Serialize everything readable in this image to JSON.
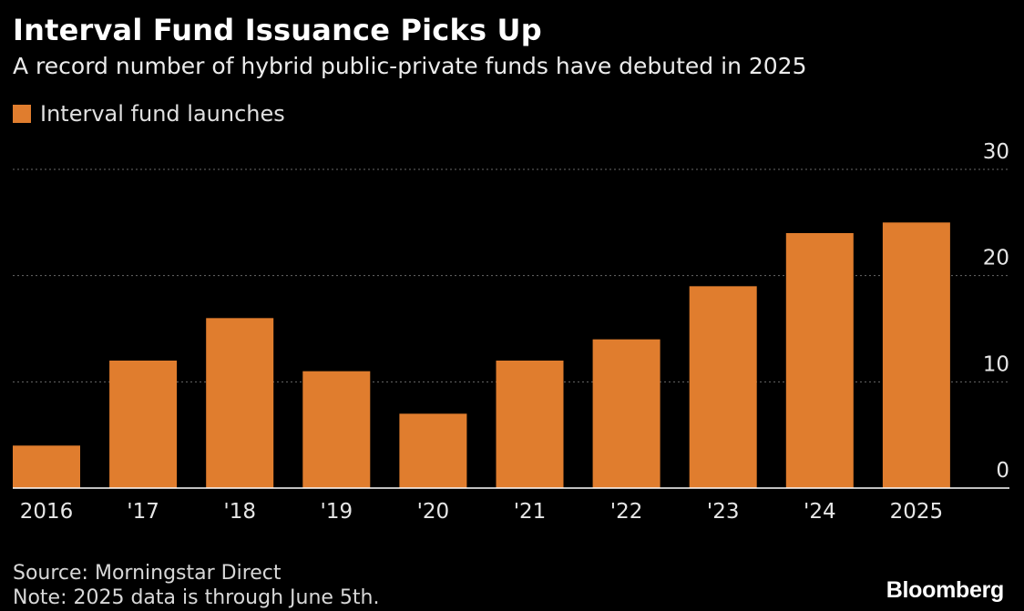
{
  "title": "Interval Fund Issuance Picks Up",
  "subtitle": "A record number of hybrid public-private funds have debuted in 2025",
  "source": "Source: Morningstar Direct",
  "note": "Note: 2025 data is through June 5th.",
  "logo": "Bloomberg",
  "colors": {
    "bar": "#e07d2e",
    "background": "#000000",
    "grid": "#6a6a6a",
    "text": "#ffffff"
  },
  "chart_data": {
    "type": "bar",
    "categories": [
      "2016",
      "'17",
      "'18",
      "'19",
      "'20",
      "'21",
      "'22",
      "'23",
      "'24",
      "2025"
    ],
    "series": [
      {
        "name": "Interval fund launches",
        "values": [
          4,
          12,
          16,
          11,
          7,
          12,
          14,
          19,
          24,
          25
        ]
      }
    ],
    "ylim": [
      0,
      30
    ],
    "yticks": [
      0,
      10,
      20,
      30
    ],
    "y_axis_position": "right",
    "grid": true,
    "legend_position": "top-left"
  }
}
